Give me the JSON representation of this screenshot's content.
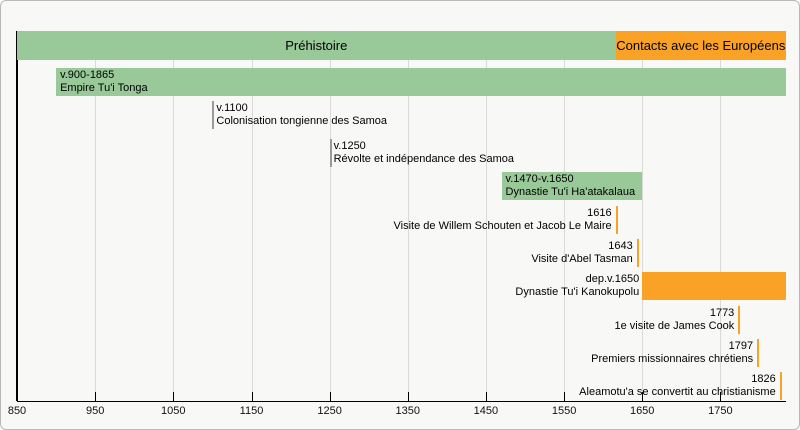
{
  "chart_data": {
    "type": "timeline",
    "title": "",
    "axis": {
      "start": 850,
      "end": 1834,
      "tick_interval": 100,
      "tick_years": [
        850,
        950,
        1050,
        1150,
        1250,
        1350,
        1450,
        1550,
        1650,
        1750
      ],
      "tick_labels": [
        "850",
        "950",
        "1050",
        "1150",
        "1250",
        "1350",
        "1450",
        "1550",
        "1650",
        "1750"
      ],
      "grid": "on",
      "grid_years": [
        950,
        1050,
        1150,
        1250,
        1350,
        1450,
        1550,
        1650,
        1750
      ]
    },
    "colors": {
      "green": "#99c999",
      "orange": "#f9a226",
      "gray_marker": "#9a9a9a",
      "grid": "#d9d9d9",
      "axis": "#000000",
      "background": "#f8f8f7",
      "text": "#000000"
    },
    "periods": [
      {
        "label": "Préhistoire",
        "start": 850,
        "end": 1616,
        "color": "green",
        "row": 0
      },
      {
        "label": "Contacts avec les Européens",
        "start": 1616,
        "end": null,
        "color": "orange",
        "row": 0
      }
    ],
    "bars": [
      {
        "date_label": "v.900-1865",
        "label": "Empire Tu'i Tonga",
        "start": 900,
        "end": 1865,
        "color": "green",
        "row": 1,
        "text_position": "inside"
      },
      {
        "date_label": "v.1470-v.1650",
        "label": "Dynastie Tu'i Ha'atakalaua",
        "start": 1470,
        "end": 1650,
        "color": "green",
        "row": 4,
        "text_position": "inside"
      },
      {
        "date_label": "dep.v.1650",
        "label": "Dynastie Tu'i Kanokupolu",
        "start": 1650,
        "end": null,
        "color": "orange",
        "row": 7,
        "text_position": "outside-left"
      }
    ],
    "events": [
      {
        "date_label": "v.1100",
        "label": "Colonisation tongienne des Samoa",
        "year": 1100,
        "row": 2,
        "align": "left",
        "marker_color": "gray_marker"
      },
      {
        "date_label": "v.1250",
        "label": "Révolte et indépendance des Samoa",
        "year": 1250,
        "row": 3,
        "align": "left",
        "marker_color": "gray_marker"
      },
      {
        "date_label": "1616",
        "label": "Visite de Willem Schouten et Jacob Le Maire",
        "year": 1616,
        "row": 5,
        "align": "right",
        "marker_color": "orange"
      },
      {
        "date_label": "1643",
        "label": "Visite d'Abel Tasman",
        "year": 1643,
        "row": 6,
        "align": "right",
        "marker_color": "orange"
      },
      {
        "date_label": "1773",
        "label": "1e visite de James Cook",
        "year": 1773,
        "row": 8,
        "align": "right",
        "marker_color": "orange"
      },
      {
        "date_label": "1797",
        "label": "Premiers missionnaires chrétiens",
        "year": 1797,
        "row": 9,
        "align": "right",
        "marker_color": "orange"
      },
      {
        "date_label": "1826",
        "label": "Aleamotu'a se convertit au christianisme",
        "year": 1826,
        "row": 10,
        "align": "right",
        "marker_color": "orange"
      }
    ]
  }
}
